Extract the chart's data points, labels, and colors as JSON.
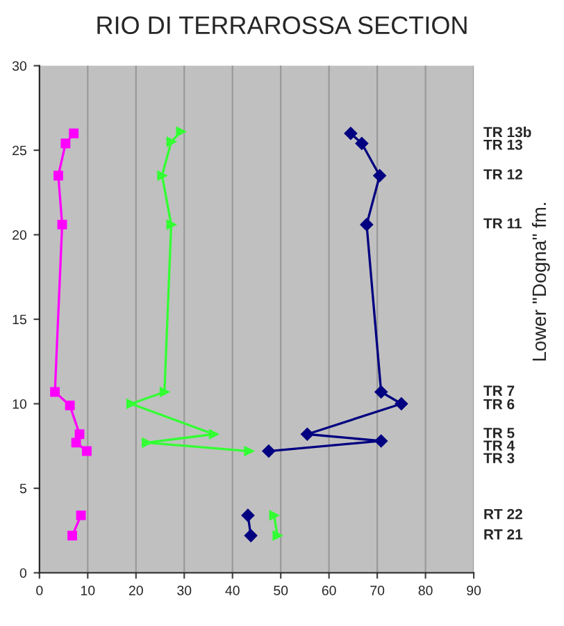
{
  "chart_data": {
    "type": "line",
    "title": "RIO DI TERRAROSSA SECTION",
    "y2label": "Lower \"Dogna\" fm.",
    "xlim": [
      0,
      90
    ],
    "xticks": [
      0,
      10,
      20,
      30,
      40,
      50,
      60,
      70,
      80,
      90
    ],
    "ylim": [
      0,
      30
    ],
    "yticks": [
      0,
      5,
      10,
      15,
      20,
      25,
      30
    ],
    "annotations": [
      "TR 13b",
      "TR 13",
      "TR 12",
      "TR 11",
      "TR 7",
      "TR 6",
      "TR 5",
      "TR 4",
      "TR 3",
      "RT 22",
      "RT 21"
    ],
    "grid": "x",
    "legend": false,
    "series": [
      {
        "color": "#ff00ff",
        "marker": "square",
        "x": [
          7.1,
          5.4,
          3.9,
          4.7,
          3.2,
          6.3,
          8.3,
          7.6,
          9.8,
          null,
          8.6,
          6.8
        ],
        "values": [
          26.0,
          25.4,
          23.5,
          20.6,
          10.7,
          9.9,
          8.2,
          7.7,
          7.2,
          null,
          3.4,
          2.2
        ]
      },
      {
        "color": "#33ff33",
        "marker": "triangle",
        "x": [
          29.3,
          27.3,
          25.4,
          27.3,
          25.9,
          19.0,
          36.1,
          22.2,
          43.4,
          null,
          48.6,
          49.3
        ],
        "values": [
          26.1,
          25.5,
          23.5,
          20.6,
          10.7,
          10.0,
          8.2,
          7.7,
          7.2,
          null,
          3.4,
          2.2
        ]
      },
      {
        "color": "#000080",
        "marker": "diamond",
        "x": [
          64.5,
          66.8,
          70.5,
          67.8,
          70.8,
          75.0,
          55.5,
          70.8,
          47.5,
          null,
          43.2,
          43.8
        ],
        "values": [
          26.0,
          25.4,
          23.5,
          20.6,
          10.7,
          10.0,
          8.2,
          7.8,
          7.2,
          null,
          3.4,
          2.2
        ]
      }
    ]
  }
}
